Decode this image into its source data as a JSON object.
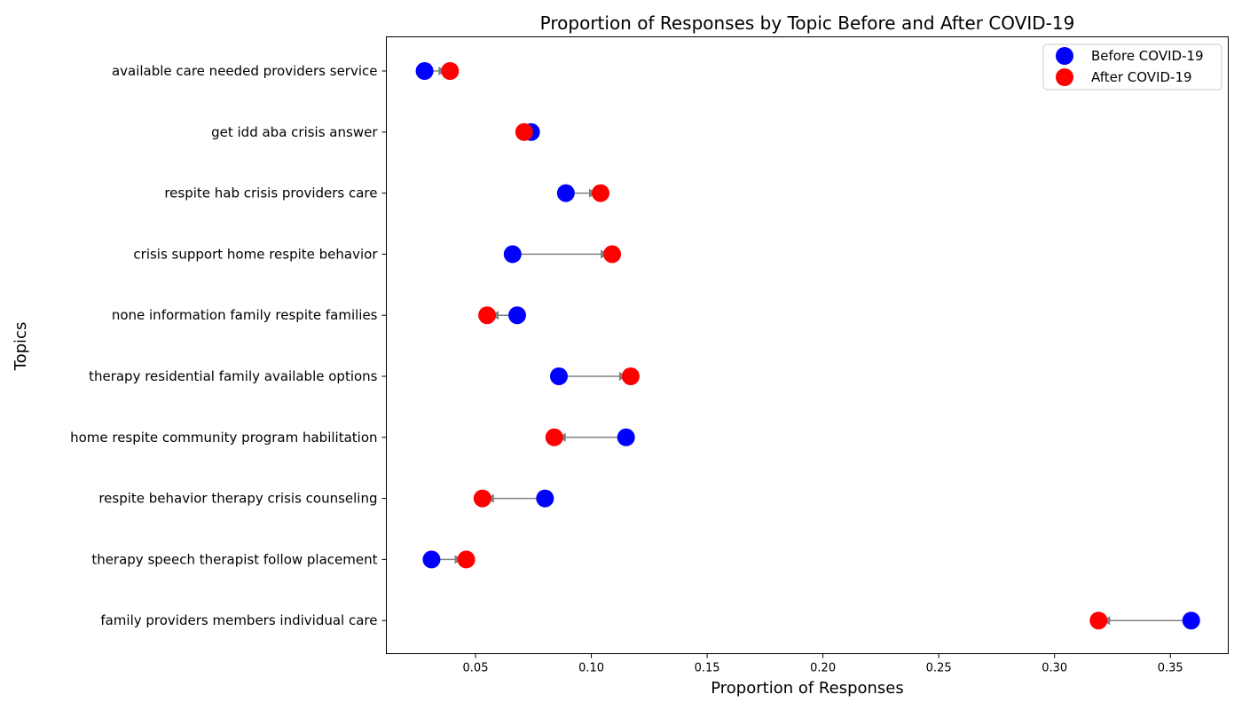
{
  "chart_data": {
    "type": "scatter",
    "title": "Proportion of Responses by Topic Before and After COVID-19",
    "xlabel": "Proportion of Responses",
    "ylabel": "Topics",
    "xlim": [
      0.0115,
      0.375
    ],
    "xticks": [
      0.05,
      0.1,
      0.15,
      0.2,
      0.25,
      0.3,
      0.35
    ],
    "xtick_labels": [
      "0.05",
      "0.10",
      "0.15",
      "0.20",
      "0.25",
      "0.30",
      "0.35"
    ],
    "grid": false,
    "legend_position": "top-right",
    "categories": [
      "available care needed providers service",
      "get idd aba crisis answer",
      "respite hab crisis providers care",
      "crisis support home respite behavior",
      "none information family respite families",
      "therapy residential family available options",
      "home respite community program habilitation",
      "respite behavior therapy crisis counseling",
      "therapy speech therapist follow placement",
      "family providers members individual care"
    ],
    "series": [
      {
        "name": "Before COVID-19",
        "color": "#0000ff",
        "values": [
          0.028,
          0.074,
          0.089,
          0.066,
          0.068,
          0.086,
          0.115,
          0.08,
          0.031,
          0.359
        ]
      },
      {
        "name": "After COVID-19",
        "color": "#ff0000",
        "values": [
          0.039,
          0.071,
          0.104,
          0.109,
          0.055,
          0.117,
          0.084,
          0.053,
          0.046,
          0.319
        ]
      }
    ],
    "connector_color": "#808080"
  }
}
